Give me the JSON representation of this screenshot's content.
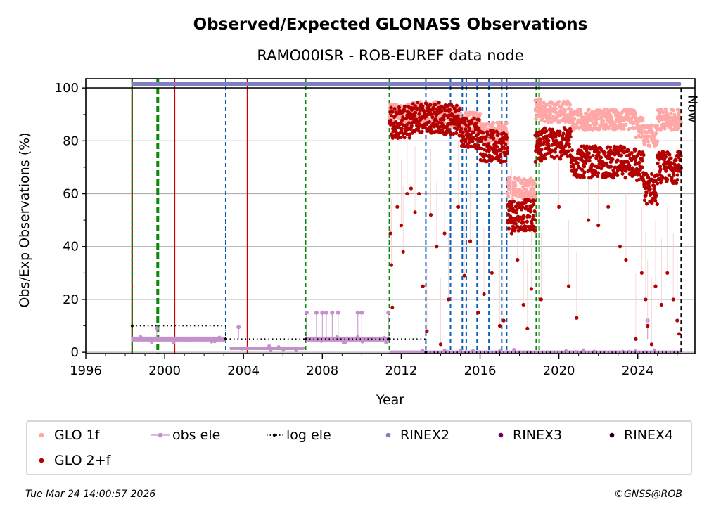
{
  "chart_data": {
    "type": "scatter",
    "title": "Observed/Expected GLONASS Observations",
    "subtitle": "RAMO00ISR - ROB-EUREF data node",
    "xlabel": "Year",
    "ylabel": "Obs/Exp Observations (%)",
    "xlim": [
      1996,
      2026.9
    ],
    "ylim": [
      -0.5,
      103.5
    ],
    "x_ticks": [
      1996,
      2000,
      2004,
      2008,
      2012,
      2016,
      2020,
      2024
    ],
    "x_tick_labels": [
      "1996",
      "2000",
      "2004",
      "2008",
      "2012",
      "2016",
      "2020",
      "2024"
    ],
    "y_ticks": [
      0,
      20,
      40,
      60,
      80,
      100
    ],
    "y_tick_labels": [
      "0",
      "20",
      "40",
      "60",
      "80",
      "100"
    ],
    "grid": "horizontal",
    "now_label": "Now",
    "now_year": 2026.2,
    "legend": {
      "placement": "bottom",
      "entries": [
        {
          "label": "GLO 1f",
          "color": "#ffa6a6",
          "style": "dot"
        },
        {
          "label": "obs ele",
          "color": "#c491cc",
          "style": "line-dot"
        },
        {
          "label": "log ele",
          "color": "#000000",
          "style": "dotted-line"
        },
        {
          "label": "RINEX2",
          "color": "#8080c0",
          "style": "dot"
        },
        {
          "label": "RINEX3",
          "color": "#6a0062",
          "style": "dot"
        },
        {
          "label": "RINEX4",
          "color": "#200020",
          "style": "dot"
        },
        {
          "label": "GLO 2+f",
          "color": "#b30000",
          "style": "dot"
        }
      ]
    },
    "colors": {
      "glo1f": "#ffa6a6",
      "glo2f": "#b30000",
      "obs_ele": "#c491cc",
      "rinex2": "#8080c0",
      "grid": "#b0b0b0",
      "event_green": "#0a8a0a",
      "event_blue": "#0a5fb4",
      "event_red": "#d00000"
    },
    "rinex2_span": [
      1998.3,
      2026.2
    ],
    "rinex2_value": 101.5,
    "event_lines": [
      {
        "year": 1998.35,
        "kind": "red-green"
      },
      {
        "year": 1999.65,
        "kind": "green-thick"
      },
      {
        "year": 2000.5,
        "kind": "red"
      },
      {
        "year": 2003.1,
        "kind": "blue"
      },
      {
        "year": 2004.2,
        "kind": "red"
      },
      {
        "year": 2007.15,
        "kind": "green"
      },
      {
        "year": 2011.4,
        "kind": "green"
      },
      {
        "year": 2013.25,
        "kind": "blue"
      },
      {
        "year": 2014.5,
        "kind": "blue"
      },
      {
        "year": 2015.1,
        "kind": "blue"
      },
      {
        "year": 2015.3,
        "kind": "blue"
      },
      {
        "year": 2015.85,
        "kind": "blue"
      },
      {
        "year": 2016.45,
        "kind": "blue"
      },
      {
        "year": 2017.1,
        "kind": "blue"
      },
      {
        "year": 2017.35,
        "kind": "blue"
      },
      {
        "year": 2018.85,
        "kind": "green"
      },
      {
        "year": 2019.0,
        "kind": "green"
      }
    ],
    "log_ele": [
      {
        "from": 1998.35,
        "to": 2003.1,
        "value": 10
      },
      {
        "from": 2003.1,
        "to": 2007.15,
        "value": 5
      },
      {
        "from": 2007.15,
        "to": 2011.4,
        "value": 5
      },
      {
        "from": 2011.4,
        "to": 2013.25,
        "value": 5
      },
      {
        "from": 2013.25,
        "to": 2026.2,
        "value": 0
      }
    ],
    "obs_ele_segments": [
      {
        "from": 1998.3,
        "to": 2003.1,
        "value": 5
      },
      {
        "from": 2003.3,
        "to": 2007.1,
        "value": 1.5
      },
      {
        "from": 2007.15,
        "to": 2011.4,
        "value": 5
      },
      {
        "from": 2011.4,
        "to": 2026.2,
        "value": 0
      }
    ],
    "obs_ele_spikes": [
      {
        "year": 2007.2,
        "value": 15
      },
      {
        "year": 2007.7,
        "value": 15
      },
      {
        "year": 2008.0,
        "value": 15
      },
      {
        "year": 2008.2,
        "value": 15
      },
      {
        "year": 2008.5,
        "value": 15
      },
      {
        "year": 2008.8,
        "value": 15
      },
      {
        "year": 2009.8,
        "value": 15
      },
      {
        "year": 2010.0,
        "value": 15
      },
      {
        "year": 2011.35,
        "value": 15
      },
      {
        "year": 1999.6,
        "value": 9
      },
      {
        "year": 2003.75,
        "value": 9.5
      },
      {
        "year": 2024.5,
        "value": 12
      }
    ],
    "glo_series": [
      {
        "from": 2011.4,
        "to": 2012.6,
        "glo1f": 90,
        "glo2f": 87
      },
      {
        "from": 2012.6,
        "to": 2014.0,
        "glo1f": 91,
        "glo2f": 89
      },
      {
        "from": 2014.0,
        "to": 2015.0,
        "glo1f": 89,
        "glo2f": 88
      },
      {
        "from": 2015.0,
        "to": 2016.0,
        "glo1f": 87,
        "glo2f": 83
      },
      {
        "from": 2016.0,
        "to": 2017.4,
        "glo1f": 83,
        "glo2f": 78
      },
      {
        "from": 2017.4,
        "to": 2018.8,
        "glo1f": 62,
        "glo2f": 52
      },
      {
        "from": 2018.8,
        "to": 2019.1,
        "glo1f": 92,
        "glo2f": 78
      },
      {
        "from": 2019.1,
        "to": 2020.6,
        "glo1f": 91,
        "glo2f": 79
      },
      {
        "from": 2020.6,
        "to": 2023.9,
        "glo1f": 88,
        "glo2f": 72
      },
      {
        "from": 2023.9,
        "to": 2024.3,
        "glo1f": 85,
        "glo2f": 70
      },
      {
        "from": 2024.3,
        "to": 2025.0,
        "glo1f": 82,
        "glo2f": 62
      },
      {
        "from": 2025.0,
        "to": 2026.2,
        "glo1f": 88,
        "glo2f": 70
      }
    ],
    "glo2f_outliers": [
      [
        2011.45,
        45
      ],
      [
        2011.5,
        33
      ],
      [
        2011.55,
        17
      ],
      [
        2011.8,
        55
      ],
      [
        2012.0,
        48
      ],
      [
        2012.1,
        38
      ],
      [
        2012.3,
        60
      ],
      [
        2012.5,
        62
      ],
      [
        2012.7,
        53
      ],
      [
        2012.9,
        60
      ],
      [
        2013.1,
        25
      ],
      [
        2013.3,
        8
      ],
      [
        2013.5,
        52
      ],
      [
        2013.8,
        40
      ],
      [
        2014.0,
        3
      ],
      [
        2014.2,
        45
      ],
      [
        2014.4,
        20
      ],
      [
        2014.9,
        55
      ],
      [
        2015.2,
        29
      ],
      [
        2015.5,
        42
      ],
      [
        2015.9,
        15
      ],
      [
        2016.2,
        22
      ],
      [
        2016.6,
        30
      ],
      [
        2017.0,
        10
      ],
      [
        2017.2,
        12
      ],
      [
        2017.6,
        45
      ],
      [
        2017.9,
        35
      ],
      [
        2018.2,
        18
      ],
      [
        2018.4,
        9
      ],
      [
        2018.6,
        24
      ],
      [
        2019.1,
        20
      ],
      [
        2020.0,
        55
      ],
      [
        2020.5,
        25
      ],
      [
        2020.9,
        13
      ],
      [
        2021.5,
        50
      ],
      [
        2022.0,
        48
      ],
      [
        2022.5,
        55
      ],
      [
        2023.1,
        40
      ],
      [
        2023.4,
        35
      ],
      [
        2023.9,
        5
      ],
      [
        2024.2,
        30
      ],
      [
        2024.4,
        20
      ],
      [
        2024.5,
        10
      ],
      [
        2024.7,
        3
      ],
      [
        2024.9,
        25
      ],
      [
        2025.2,
        18
      ],
      [
        2025.5,
        30
      ],
      [
        2025.8,
        20
      ],
      [
        2026.0,
        12
      ],
      [
        2026.1,
        7
      ]
    ],
    "footer_left": "Tue Mar 24 14:00:57 2026",
    "footer_right": "©GNSS@ROB"
  }
}
